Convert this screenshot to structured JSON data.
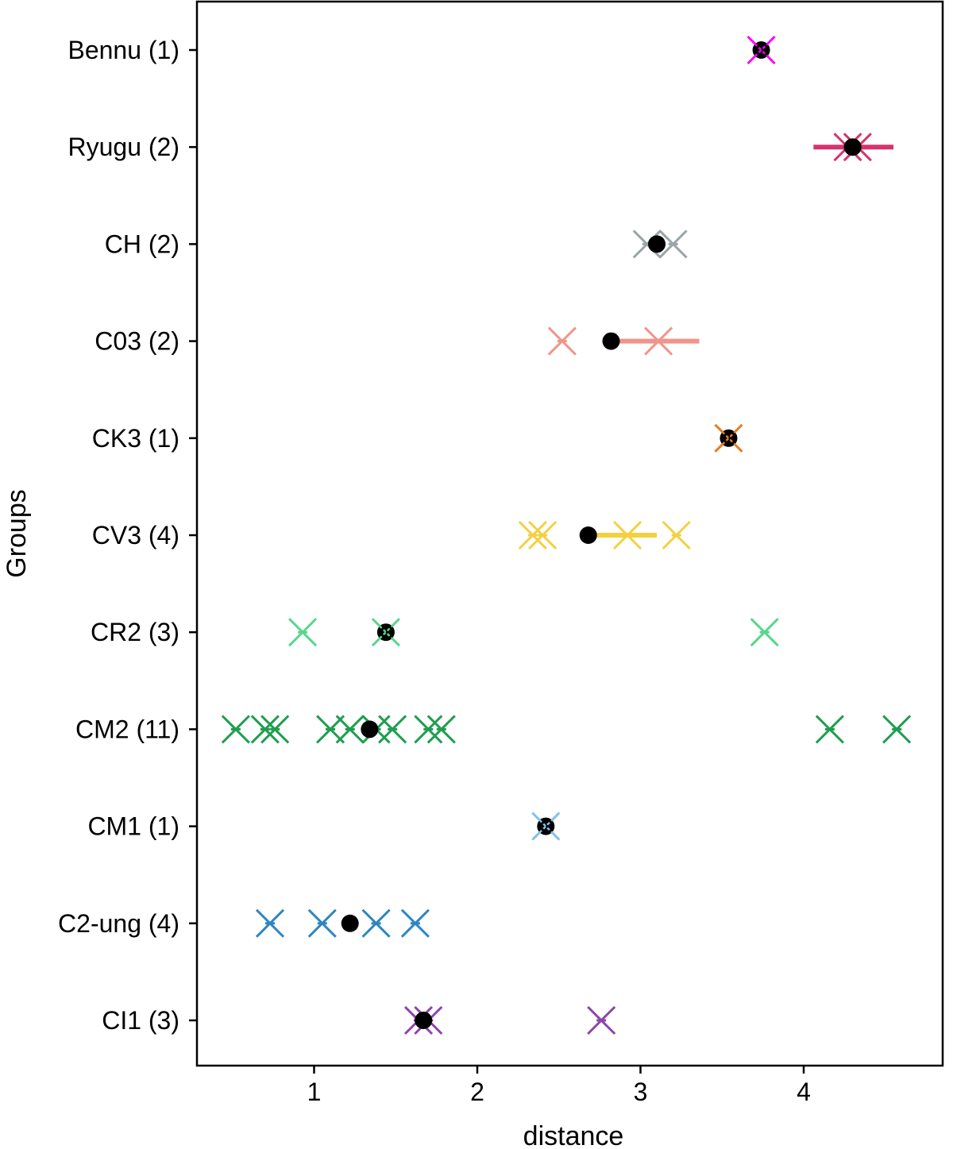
{
  "chart_data": {
    "type": "scatter",
    "xlabel": "distance",
    "ylabel": "Groups",
    "xlim": [
      0.25,
      4.7
    ],
    "xticks": [
      1,
      2,
      3,
      4
    ],
    "grid": false,
    "legend": "none",
    "markers": {
      "sample": "x",
      "mean": "filled-circle"
    },
    "mean_color": "#000000",
    "groups": [
      {
        "label": "Bennu (1)",
        "color": "#ff00ff",
        "points": [
          3.74
        ],
        "mean": 3.74,
        "range": [
          3.74,
          3.74
        ]
      },
      {
        "label": "Ryugu (2)",
        "color": "#d6336c",
        "points": [
          4.27,
          4.33
        ],
        "mean": 4.3,
        "range": [
          4.06,
          4.55
        ]
      },
      {
        "label": "CH (2)",
        "color": "#9aa5a8",
        "points": [
          3.04,
          3.2
        ],
        "mean": 3.1,
        "range": [
          3.1,
          3.1
        ]
      },
      {
        "label": "C03 (2)",
        "color": "#f1948a",
        "points": [
          2.52,
          3.11
        ],
        "mean": 2.82,
        "range": [
          2.82,
          3.36
        ]
      },
      {
        "label": "CK3 (1)",
        "color": "#e67e22",
        "points": [
          3.54
        ],
        "mean": 3.54,
        "range": [
          3.54,
          3.54
        ]
      },
      {
        "label": "CV3 (4)",
        "color": "#f4d03f",
        "points": [
          2.34,
          2.4,
          2.92,
          3.22
        ],
        "mean": 2.68,
        "range": [
          2.68,
          3.1
        ]
      },
      {
        "label": "CR2 (3)",
        "color": "#58d68d",
        "points": [
          0.93,
          1.44,
          3.76
        ],
        "mean": 1.44,
        "range": [
          1.44,
          1.44
        ]
      },
      {
        "label": "CM2 (11)",
        "color": "#1e9e4f",
        "points": [
          0.52,
          0.7,
          0.76,
          1.1,
          1.22,
          1.38,
          1.48,
          1.7,
          1.78,
          4.16,
          4.57
        ],
        "mean": 1.34,
        "range": [
          1.34,
          1.34
        ]
      },
      {
        "label": "CM1 (1)",
        "color": "#85c1e9",
        "points": [
          2.42
        ],
        "mean": 2.42,
        "range": [
          2.42,
          2.42
        ]
      },
      {
        "label": "C2-ung (4)",
        "color": "#2e86c1",
        "points": [
          0.73,
          1.05,
          1.38,
          1.62
        ],
        "mean": 1.22,
        "range": [
          1.22,
          1.22
        ]
      },
      {
        "label": "CI1 (3)",
        "color": "#8e44ad",
        "points": [
          1.64,
          1.7,
          2.76
        ],
        "mean": 1.67,
        "range": [
          1.67,
          1.67
        ]
      }
    ]
  }
}
